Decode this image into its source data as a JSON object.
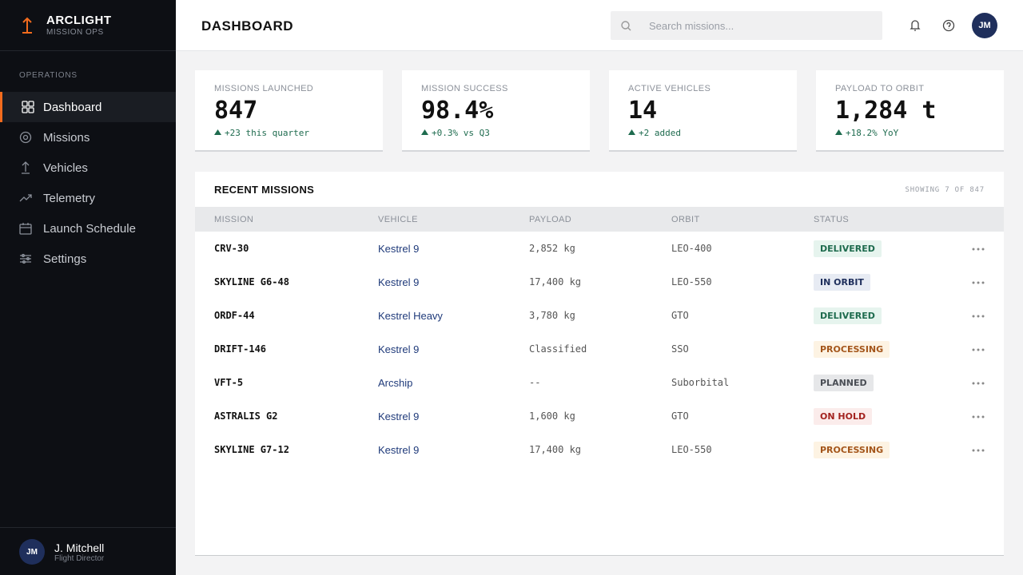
{
  "brand": {
    "name": "ARCLIGHT",
    "subtitle": "MISSION OPS"
  },
  "nav": {
    "section": "OPERATIONS",
    "items": [
      "Dashboard",
      "Missions",
      "Vehicles",
      "Telemetry",
      "Launch Schedule",
      "Settings"
    ]
  },
  "user": {
    "initials": "JM",
    "name": "J. Mitchell",
    "role": "Flight Director"
  },
  "header": {
    "title": "DASHBOARD",
    "search_placeholder": "Search missions...",
    "avatar": "JM"
  },
  "stats": [
    {
      "label": "MISSIONS LAUNCHED",
      "value": "847",
      "delta": "+23 this quarter"
    },
    {
      "label": "MISSION SUCCESS",
      "value": "98.4%",
      "delta": "+0.3% vs Q3"
    },
    {
      "label": "ACTIVE VEHICLES",
      "value": "14",
      "delta": "+2 added"
    },
    {
      "label": "PAYLOAD TO ORBIT",
      "value": "1,284 t",
      "delta": "+18.2% YoY"
    }
  ],
  "table": {
    "title": "RECENT MISSIONS",
    "summary": "SHOWING 7 OF 847",
    "columns": [
      "MISSION",
      "VEHICLE",
      "PAYLOAD",
      "ORBIT",
      "STATUS"
    ],
    "rows": [
      [
        "CRV-30",
        "Kestrel 9",
        "2,852 kg",
        "LEO-400",
        "DELIVERED"
      ],
      [
        "SKYLINE G6-48",
        "Kestrel 9",
        "17,400 kg",
        "LEO-550",
        "IN ORBIT"
      ],
      [
        "ORDF-44",
        "Kestrel Heavy",
        "3,780 kg",
        "GTO",
        "DELIVERED"
      ],
      [
        "DRIFT-146",
        "Kestrel 9",
        "Classified",
        "SSO",
        "PROCESSING"
      ],
      [
        "VFT-5",
        "Arcship",
        "--",
        "Suborbital",
        "PLANNED"
      ],
      [
        "ASTRALIS G2",
        "Kestrel 9",
        "1,600 kg",
        "GTO",
        "ON HOLD"
      ],
      [
        "SKYLINE G7-12",
        "Kestrel 9",
        "17,400 kg",
        "LEO-550",
        "PROCESSING"
      ]
    ]
  }
}
